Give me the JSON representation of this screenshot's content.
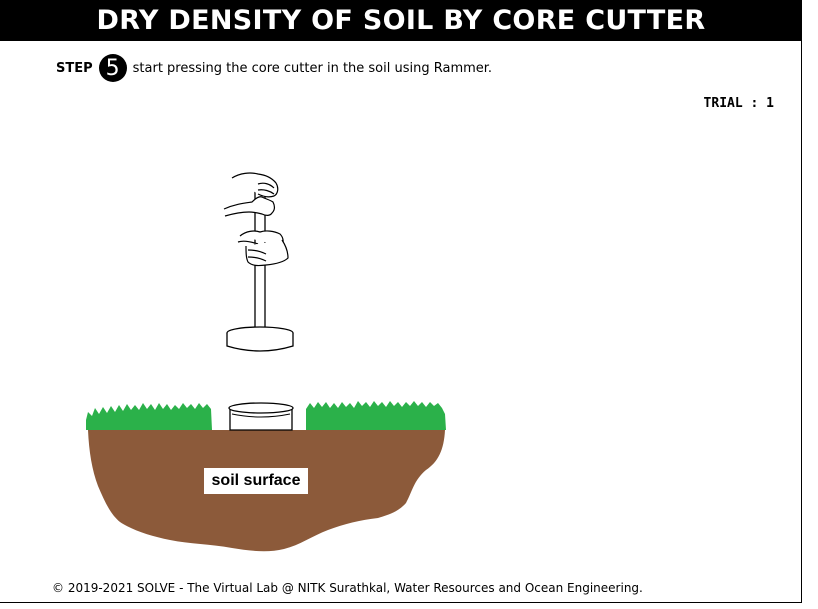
{
  "header": {
    "title": "DRY DENSITY OF SOIL BY CORE CUTTER"
  },
  "step": {
    "label": "STEP",
    "number": "5",
    "instruction": "start pressing the core cutter in the soil using Rammer."
  },
  "trial": {
    "label": "TRIAL : 1"
  },
  "scene": {
    "soil_label": "soil surface",
    "colors": {
      "grass": "#2bb14a",
      "soil": "#8c5a3a",
      "outline": "#000000"
    },
    "icons": [
      "rammer-icon",
      "hand-icon",
      "core-cutter-icon"
    ]
  },
  "footer": {
    "text": "© 2019-2021 SOLVE - The Virtual Lab @ NITK Surathkal, Water Resources and Ocean Engineering."
  }
}
